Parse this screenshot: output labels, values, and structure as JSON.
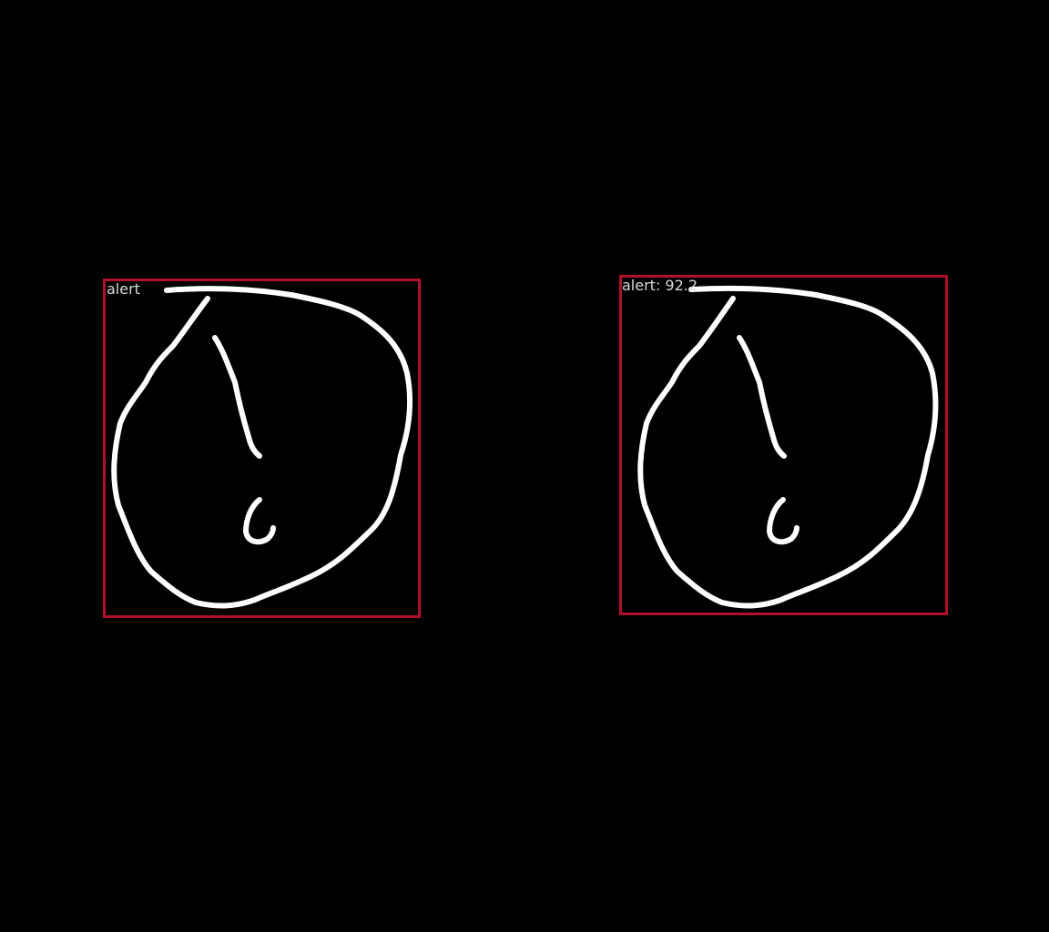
{
  "panels": [
    {
      "label": "alert",
      "colors": {
        "box": "#b0102a",
        "stroke": "#ffffff",
        "label": "#d9d9d9"
      }
    },
    {
      "label": "alert: 92.2",
      "colors": {
        "box": "#b0102a",
        "stroke": "#ffffff",
        "label": "#d9d9d9"
      }
    }
  ],
  "background": "#000000"
}
